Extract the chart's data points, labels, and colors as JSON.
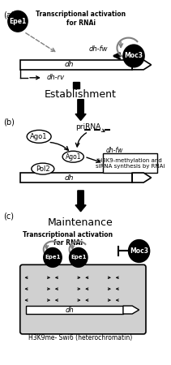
{
  "bg_color": "#ffffff",
  "panel_a_label": "(a)",
  "panel_b_label": "(b)",
  "panel_c_label": "(c)",
  "epe1_label": "Epe1",
  "moc3_label": "Moc3",
  "ago1_label": "Ago1",
  "pol2_label": "Pol2",
  "dh_label": "dh",
  "dhfw_label": "dh-fw",
  "dhrv_label": "dh-rv",
  "priRNA_label": "priRNA",
  "establishment_label": "Establishment",
  "maintenance_label": "Maintenance",
  "transcription_label": "Transcriptional activation\nfor RNAi",
  "h3k9_label": "H3K9-methylation and\nsiRNA synthesis by RNAi",
  "heterochromatin_label": "H3K9me- Swi6 (heterochromatin)"
}
